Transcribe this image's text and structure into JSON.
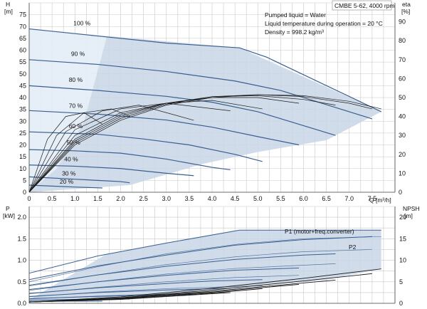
{
  "chart_data": [
    {
      "type": "line",
      "panel": "head-efficiency",
      "title": "CMBE 5-62, 4000 rpm",
      "annotations": [
        "Pumped liquid = Water",
        "Liquid temperature during operation = 20 °C",
        "Density = 998.2 kg/m³"
      ],
      "xlabel": "Q [m³/h]",
      "ylabel_left": "H\n[m]",
      "ylabel_left_unit": "[m]",
      "ylabel_left_symbol": "H",
      "ylabel_right_symbol": "eta",
      "ylabel_right_unit": "[%]",
      "xlim": [
        0,
        8
      ],
      "ylim_left": [
        0,
        80
      ],
      "ylim_right": [
        0,
        100
      ],
      "x_ticks": [
        "0",
        "0.5",
        "1.0",
        "1.5",
        "2.0",
        "2.5",
        "3.0",
        "3.5",
        "4.0",
        "4.5",
        "5.0",
        "5.5",
        "6.0",
        "6.5",
        "7.0",
        "7.5"
      ],
      "y_ticks_left": [
        "0",
        "5",
        "10",
        "15",
        "20",
        "25",
        "30",
        "35",
        "40",
        "45",
        "50",
        "55",
        "60",
        "65",
        "70",
        "75"
      ],
      "y_ticks_right": [
        "0",
        "10",
        "20",
        "30",
        "40",
        "50",
        "60",
        "70",
        "80",
        "90"
      ],
      "grid": true,
      "speed_labels": [
        {
          "text": "100 %",
          "x": 0.5,
          "y": 70
        },
        {
          "text": "90 %",
          "x": 0.45,
          "y": 57
        },
        {
          "text": "80 %",
          "x": 0.4,
          "y": 46
        },
        {
          "text": "70 %",
          "x": 0.4,
          "y": 35
        },
        {
          "text": "60 %",
          "x": 0.4,
          "y": 26.5
        },
        {
          "text": "50 %",
          "x": 0.35,
          "y": 19.5
        },
        {
          "text": "40 %",
          "x": 0.3,
          "y": 12.5
        },
        {
          "text": "30 %",
          "x": 0.25,
          "y": 6.5
        },
        {
          "text": "20 %",
          "x": 0.2,
          "y": 3
        }
      ],
      "head_curves": [
        {
          "name": "100 %",
          "x": [
            0,
            1.5,
            3,
            4.6,
            5.2,
            7.7
          ],
          "y": [
            69,
            66,
            63,
            61,
            57,
            34
          ]
        },
        {
          "name": "90 %",
          "x": [
            0,
            1.5,
            3,
            4.5,
            5.5,
            7.5
          ],
          "y": [
            56,
            54,
            51,
            47,
            43,
            31
          ]
        },
        {
          "name": "80 %",
          "x": [
            0,
            1.5,
            3,
            4,
            5,
            6.7
          ],
          "y": [
            45,
            43,
            40.5,
            38,
            34,
            24
          ]
        },
        {
          "name": "70 %",
          "x": [
            0,
            1.5,
            3,
            4,
            5,
            5.9
          ],
          "y": [
            34.5,
            33,
            30.5,
            27.5,
            23.5,
            20
          ]
        },
        {
          "name": "60 %",
          "x": [
            0,
            1.5,
            2.5,
            3.5,
            4.5,
            5.1
          ],
          "y": [
            25.5,
            24.5,
            22.5,
            20,
            16,
            13
          ]
        },
        {
          "name": "50 %",
          "x": [
            0,
            1,
            2,
            3,
            4,
            4.4
          ],
          "y": [
            18,
            17.5,
            16.5,
            14,
            10.5,
            9.5
          ]
        },
        {
          "name": "40 %",
          "x": [
            0,
            1,
            2,
            3,
            3.6
          ],
          "y": [
            11.5,
            11,
            10,
            8,
            7
          ]
        },
        {
          "name": "30 %",
          "x": [
            0,
            1,
            1.5,
            2,
            2.2
          ],
          "y": [
            6.5,
            5.5,
            5,
            4.5,
            4
          ]
        },
        {
          "name": "20 %",
          "x": [
            0,
            0.5,
            1,
            1.6
          ],
          "y": [
            3,
            2.6,
            2.2,
            1.8
          ]
        }
      ],
      "envelope_polygon": {
        "x": [
          0,
          0.6,
          1.2,
          1.7,
          4.6,
          7.7,
          6.5,
          5.0,
          3.8,
          2.2,
          0
        ],
        "y": [
          0,
          10,
          30,
          66,
          61,
          34,
          22,
          17,
          12,
          3,
          0
        ]
      },
      "efficiency_curves": [
        {
          "name": "100 %",
          "x": [
            0,
            1,
            2,
            3,
            4,
            5,
            6,
            7,
            7.7
          ],
          "eta": [
            0,
            25,
            38,
            46,
            50,
            51.5,
            51,
            48,
            44
          ]
        },
        {
          "name": "90 %",
          "x": [
            0,
            1,
            2,
            3,
            4,
            5,
            6,
            7,
            7.5
          ],
          "eta": [
            0,
            26,
            39,
            46.5,
            50.5,
            51.5,
            50.5,
            47,
            44
          ]
        },
        {
          "name": "80 %",
          "x": [
            0,
            1,
            2,
            3,
            4,
            5,
            6,
            6.7
          ],
          "eta": [
            0,
            27,
            40,
            47,
            50.5,
            51,
            49,
            46
          ]
        },
        {
          "name": "70 %",
          "x": [
            0,
            1,
            2,
            3,
            4,
            5,
            5.9
          ],
          "eta": [
            0,
            28,
            41,
            47,
            50,
            50,
            47
          ]
        },
        {
          "name": "60 %",
          "x": [
            0,
            1,
            2,
            3,
            4,
            5.1
          ],
          "eta": [
            0,
            30,
            42,
            47,
            48.5,
            44
          ]
        },
        {
          "name": "50 %",
          "x": [
            0,
            1,
            2,
            3,
            4.4
          ],
          "eta": [
            0,
            33,
            44,
            47,
            43
          ]
        },
        {
          "name": "40 %",
          "x": [
            0,
            0.8,
            1.6,
            2.4,
            3.6
          ],
          "eta": [
            0,
            32,
            43,
            46,
            38
          ]
        },
        {
          "name": "30 %",
          "x": [
            0,
            0.6,
            1.2,
            1.8,
            2.2
          ],
          "eta": [
            0,
            30,
            42,
            44,
            40
          ]
        },
        {
          "name": "20 %",
          "x": [
            0,
            0.4,
            0.8,
            1.2,
            1.6
          ],
          "eta": [
            0,
            28,
            40,
            42,
            36
          ]
        }
      ]
    },
    {
      "type": "line",
      "panel": "power-npsh",
      "ylabel_left_symbol": "P",
      "ylabel_left_unit": "[kW]",
      "ylabel_right_symbol": "NPSH",
      "ylabel_right_unit": "[m]",
      "xlim": [
        0,
        8
      ],
      "ylim_left": [
        0,
        2.25
      ],
      "ylim_right": [
        0,
        22.5
      ],
      "y_ticks_left": [
        "0.0",
        "0.5",
        "1.0",
        "1.5",
        "2.0"
      ],
      "y_ticks_right": [
        "0",
        "5",
        "10",
        "15",
        "20"
      ],
      "grid": true,
      "series_labels": [
        "P1 (motor+freq.converter)",
        "P2"
      ],
      "envelope_polygon": {
        "x": [
          0,
          1.7,
          4.6,
          7.7,
          7.7,
          6.5,
          5.0,
          2.2,
          0
        ],
        "y": [
          0.08,
          1.15,
          1.7,
          1.7,
          0.8,
          0.55,
          0.4,
          0.12,
          0.02
        ]
      },
      "p1_curves": [
        {
          "name": "100 %",
          "x": [
            0,
            1.5,
            3,
            4.6,
            6,
            7.7
          ],
          "y": [
            0.7,
            1.1,
            1.4,
            1.7,
            1.7,
            1.7
          ]
        },
        {
          "name": "90 %",
          "x": [
            0,
            1.5,
            3,
            4.5,
            6,
            7.5
          ],
          "y": [
            0.55,
            0.87,
            1.12,
            1.35,
            1.48,
            1.55
          ]
        },
        {
          "name": "80 %",
          "x": [
            0,
            1.5,
            3,
            4.5,
            6,
            6.7
          ],
          "y": [
            0.42,
            0.66,
            0.86,
            1.02,
            1.12,
            1.15
          ]
        },
        {
          "name": "70 %",
          "x": [
            0,
            1.5,
            3,
            4.5,
            5.9
          ],
          "y": [
            0.32,
            0.5,
            0.65,
            0.77,
            0.82
          ]
        },
        {
          "name": "60 %",
          "x": [
            0,
            1.5,
            3,
            4,
            5.1
          ],
          "y": [
            0.23,
            0.36,
            0.46,
            0.52,
            0.55
          ]
        },
        {
          "name": "50 %",
          "x": [
            0,
            1.5,
            3,
            4.4
          ],
          "y": [
            0.16,
            0.25,
            0.31,
            0.35
          ]
        },
        {
          "name": "40 %",
          "x": [
            0,
            1.5,
            2.5,
            3.6
          ],
          "y": [
            0.11,
            0.16,
            0.19,
            0.21
          ]
        },
        {
          "name": "30 %",
          "x": [
            0,
            1,
            2.2
          ],
          "y": [
            0.07,
            0.09,
            0.1
          ]
        },
        {
          "name": "20 %",
          "x": [
            0,
            0.8,
            1.6
          ],
          "y": [
            0.04,
            0.05,
            0.05
          ]
        }
      ],
      "p2_curves": [
        {
          "name": "100 %",
          "x": [
            0,
            1.5,
            3,
            4.6,
            6,
            7.7
          ],
          "y": [
            0.5,
            0.85,
            1.15,
            1.38,
            1.5,
            1.55
          ]
        },
        {
          "name": "90 %",
          "x": [
            0,
            1.5,
            3,
            4.5,
            6,
            7.5
          ],
          "y": [
            0.4,
            0.66,
            0.9,
            1.08,
            1.2,
            1.25
          ]
        },
        {
          "name": "80 %",
          "x": [
            0,
            1.5,
            3,
            4.5,
            6.7
          ],
          "y": [
            0.3,
            0.5,
            0.68,
            0.81,
            0.92
          ]
        },
        {
          "name": "70 %",
          "x": [
            0,
            1.5,
            3,
            4.5,
            5.9
          ],
          "y": [
            0.22,
            0.37,
            0.5,
            0.6,
            0.65
          ]
        },
        {
          "name": "60 %",
          "x": [
            0,
            1.5,
            3,
            5.1
          ],
          "y": [
            0.15,
            0.26,
            0.34,
            0.41
          ]
        },
        {
          "name": "50 %",
          "x": [
            0,
            1.5,
            3,
            4.4
          ],
          "y": [
            0.1,
            0.17,
            0.22,
            0.25
          ]
        }
      ],
      "npsh_curves": [
        {
          "name": "100 %",
          "x": [
            0,
            2,
            4,
            6,
            7.7
          ],
          "y": [
            0.3,
            1.5,
            3.5,
            5.8,
            8
          ]
        },
        {
          "name": "90 %",
          "x": [
            0,
            2,
            4,
            6,
            7.5
          ],
          "y": [
            0.3,
            1.3,
            3.1,
            5.2,
            6.9
          ]
        },
        {
          "name": "80 %",
          "x": [
            0,
            2,
            4,
            6.7
          ],
          "y": [
            0.3,
            1.2,
            2.8,
            5.4
          ]
        },
        {
          "name": "70 %",
          "x": [
            0,
            2,
            4,
            5.9
          ],
          "y": [
            0.3,
            1.1,
            2.6,
            4.4
          ]
        },
        {
          "name": "60 %",
          "x": [
            0,
            2,
            4,
            5.1
          ],
          "y": [
            0.3,
            1.0,
            2.4,
            3.4
          ]
        },
        {
          "name": "50 %",
          "x": [
            0,
            2,
            4.4
          ],
          "y": [
            0.3,
            0.9,
            2.5
          ]
        }
      ]
    }
  ],
  "colors": {
    "envelope": "#c9d6e8",
    "envelope_light": "#e3ecf6",
    "head_curve": "#3a5f8f",
    "eff_curve": "#1a1a1a",
    "grid": "#c8c8c8"
  }
}
